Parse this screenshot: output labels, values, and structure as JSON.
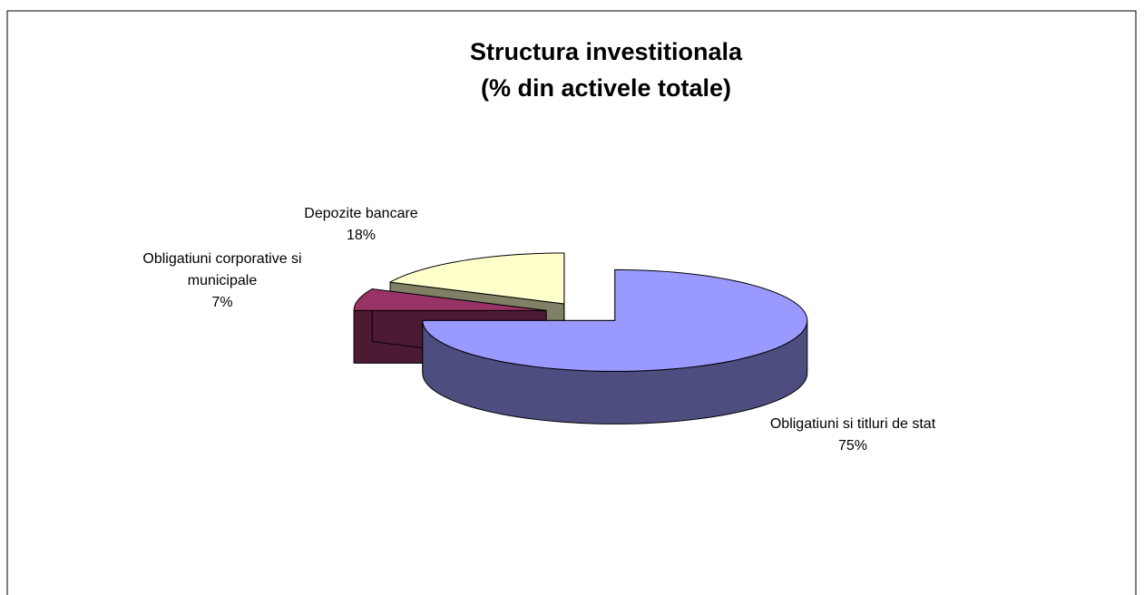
{
  "chart_data": {
    "type": "pie3d",
    "title": [
      "Structura investitionala",
      "(% din activele totale)"
    ],
    "categories": [
      "Obligatiuni si titluri de stat",
      "Obligatiuni corporative si municipale",
      "Depozite bancare"
    ],
    "values": [
      75,
      7,
      18
    ],
    "value_labels": [
      "75%",
      "7%",
      "18%"
    ],
    "colors": [
      "#9999ff",
      "#993366",
      "#ffffcc"
    ]
  }
}
